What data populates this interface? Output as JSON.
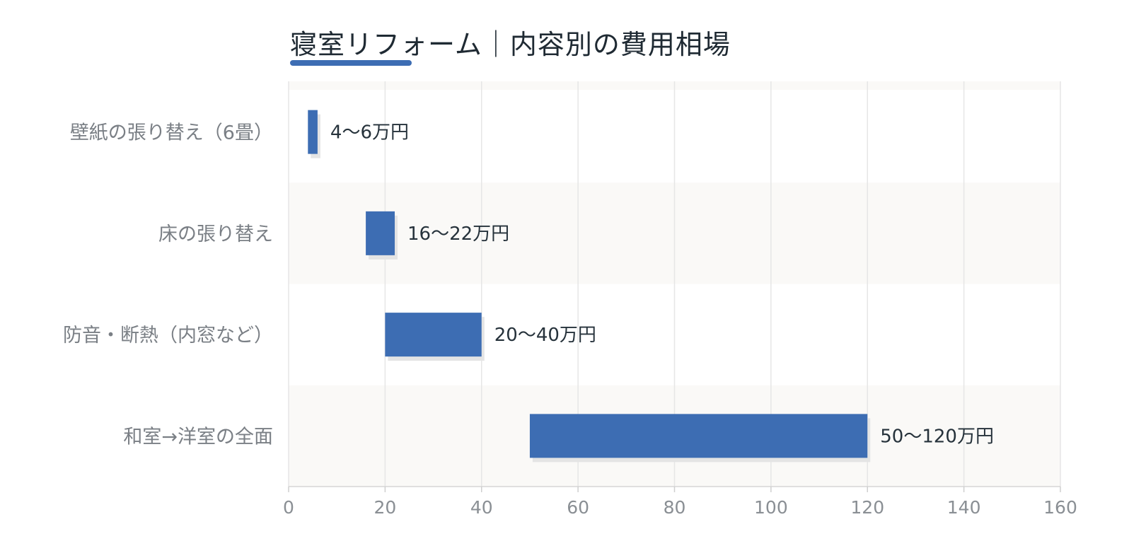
{
  "chart_data": {
    "type": "bar",
    "orientation": "horizontal",
    "subtype": "floating-range",
    "title": "寝室リフォーム｜内容別の費用相場",
    "categories": [
      "壁紙の張り替え（6畳）",
      "床の張り替え",
      "防音・断熱（内窓など）",
      "和室→洋室の全面"
    ],
    "series": [
      {
        "ranges": [
          [
            4,
            6
          ],
          [
            16,
            22
          ],
          [
            20,
            40
          ],
          [
            50,
            120
          ]
        ],
        "labels": [
          "4〜6万円",
          "16〜22万円",
          "20〜40万円",
          "50〜120万円"
        ]
      }
    ],
    "xlim": [
      0,
      160
    ],
    "xticks": [
      0,
      20,
      40,
      60,
      80,
      100,
      120,
      140,
      160
    ],
    "xlabel": "",
    "ylabel": "",
    "grid": true,
    "legend": "none"
  },
  "colors": {
    "bar": "#3d6db3",
    "accent": "#3d6db3",
    "title": "#1f2a33",
    "band": "#faf9f7"
  }
}
